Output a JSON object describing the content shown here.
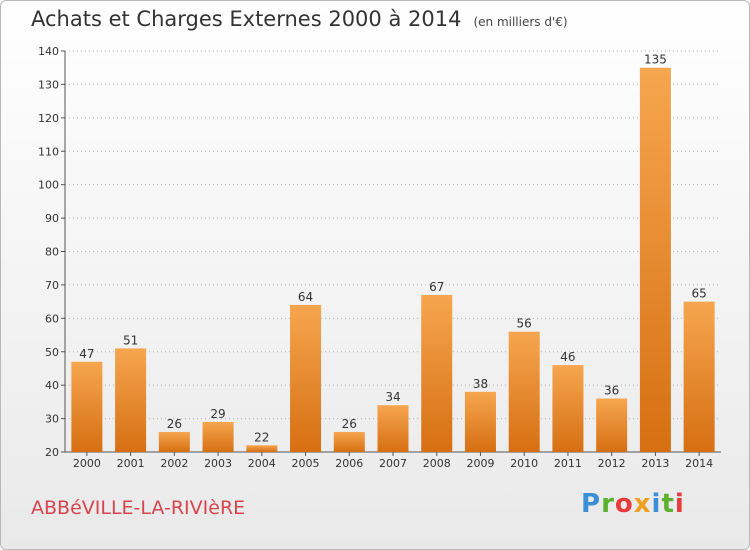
{
  "header": {
    "title": "Achats et Charges Externes 2000 à 2014",
    "unit": "(en milliers d'€)"
  },
  "footer": {
    "commune": "ABBéVILLE-LA-RIVIèRE",
    "logo": {
      "letters": [
        "P",
        "r",
        "o",
        "x",
        "i",
        "t",
        "i"
      ],
      "colors": [
        "#3a8fd6",
        "#5bb030",
        "#e83b3b",
        "#f0a020",
        "#3a8fd6",
        "#5bb030",
        "#e83b3b"
      ]
    }
  },
  "colors": {
    "bar_light": "#f6a64f",
    "bar_dark": "#d66f12",
    "axis": "#555555",
    "grid": "#b5b5b5",
    "text": "#333333"
  },
  "chart_data": {
    "type": "bar",
    "title": "Achats et Charges Externes 2000 à 2014",
    "categories": [
      "2000",
      "2001",
      "2002",
      "2003",
      "2004",
      "2005",
      "2006",
      "2007",
      "2008",
      "2009",
      "2010",
      "2011",
      "2012",
      "2013",
      "2014"
    ],
    "values": [
      47,
      51,
      26,
      29,
      22,
      64,
      26,
      34,
      67,
      38,
      56,
      46,
      36,
      135,
      65
    ],
    "ylim": [
      20,
      140
    ],
    "yticks": [
      20,
      30,
      40,
      50,
      60,
      70,
      80,
      90,
      100,
      110,
      120,
      130,
      140
    ],
    "grid": true,
    "data_labels": true
  }
}
